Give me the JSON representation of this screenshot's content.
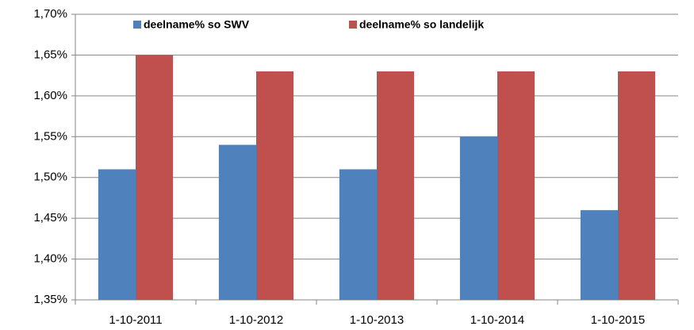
{
  "chart_data": {
    "type": "bar",
    "categories": [
      "1-10-2011",
      "1-10-2012",
      "1-10-2013",
      "1-10-2014",
      "1-10-2015"
    ],
    "series": [
      {
        "name": "deelname% so SWV",
        "color": "#4f81bd",
        "values": [
          1.51,
          1.54,
          1.51,
          1.55,
          1.46
        ]
      },
      {
        "name": "deelname% so landelijk",
        "color": "#c0504d",
        "values": [
          1.65,
          1.63,
          1.63,
          1.63,
          1.63
        ]
      }
    ],
    "ylim": [
      1.35,
      1.7
    ],
    "yticks": [
      {
        "value": 1.35,
        "label": "1,35%"
      },
      {
        "value": 1.4,
        "label": "1,40%"
      },
      {
        "value": 1.45,
        "label": "1,45%"
      },
      {
        "value": 1.5,
        "label": "1,50%"
      },
      {
        "value": 1.55,
        "label": "1,55%"
      },
      {
        "value": 1.6,
        "label": "1,60%"
      },
      {
        "value": 1.65,
        "label": "1,65%"
      },
      {
        "value": 1.7,
        "label": "1,70%"
      }
    ],
    "grid": true,
    "legend": "top"
  }
}
